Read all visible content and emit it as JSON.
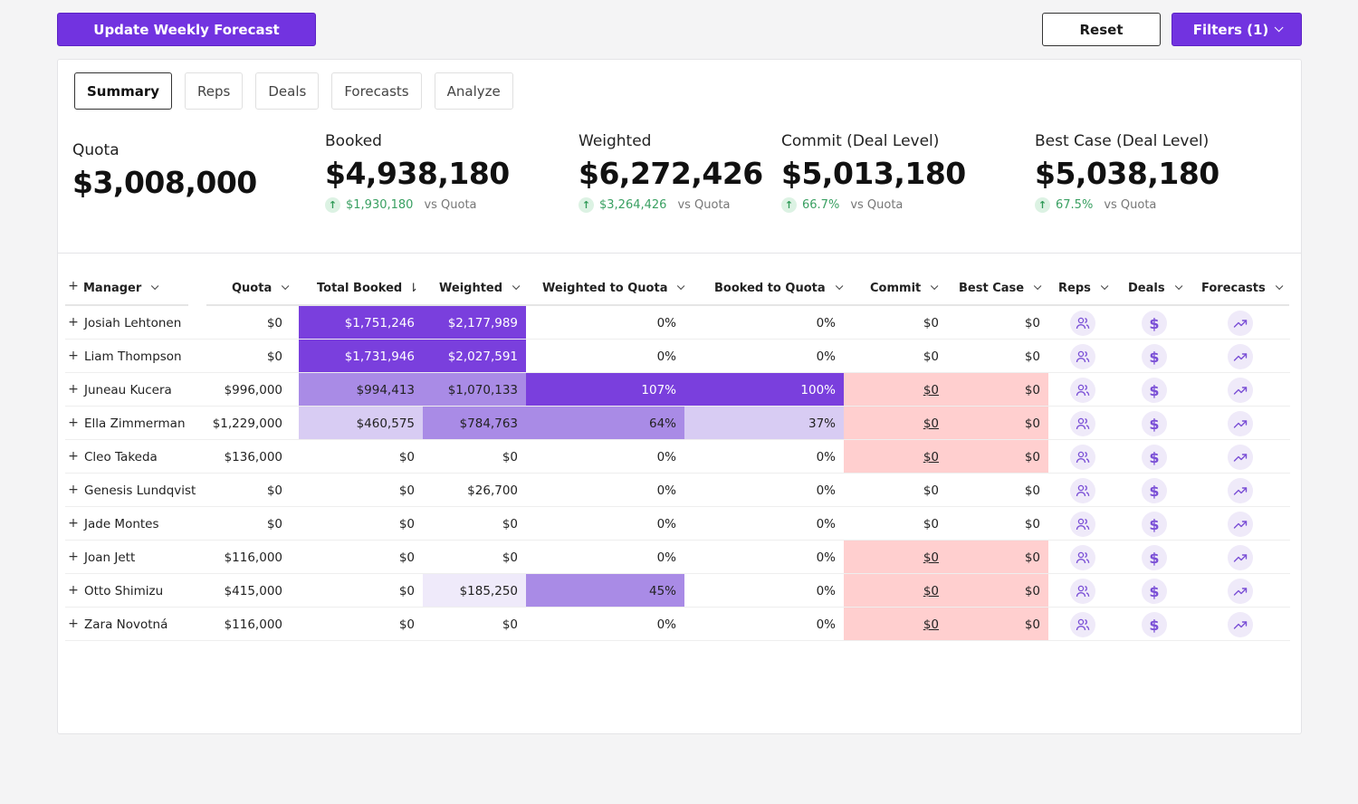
{
  "header": {
    "update_label": "Update Weekly Forecast",
    "reset_label": "Reset",
    "filters_label": "Filters (1)"
  },
  "tabs": [
    "Summary",
    "Reps",
    "Deals",
    "Forecasts",
    "Analyze"
  ],
  "metrics": {
    "quota": {
      "label": "Quota",
      "value": "$3,008,000"
    },
    "booked": {
      "label": "Booked",
      "value": "$4,938,180",
      "delta": "$1,930,180",
      "vs": "vs Quota"
    },
    "weighted": {
      "label": "Weighted",
      "value": "$6,272,426",
      "delta": "$3,264,426",
      "vs": "vs Quota"
    },
    "commit": {
      "label": "Commit (Deal Level)",
      "value": "$5,013,180",
      "delta": "66.7%",
      "vs": "vs Quota"
    },
    "best": {
      "label": "Best Case (Deal Level)",
      "value": "$5,038,180",
      "delta": "67.5%",
      "vs": "vs Quota"
    }
  },
  "table": {
    "columns": [
      "Manager",
      "Quota",
      "Total Booked",
      "Weighted",
      "Weighted to Quota",
      "Booked to Quota",
      "Commit",
      "Best Case",
      "Reps",
      "Deals",
      "Forecasts"
    ],
    "rows": [
      {
        "manager": "Josiah Lehtonen",
        "quota": "$0",
        "booked": "$1,751,246",
        "weighted": "$2,177,989",
        "wq": "0%",
        "bq": "0%",
        "commit": "$0",
        "best": "$0"
      },
      {
        "manager": "Liam Thompson",
        "quota": "$0",
        "booked": "$1,731,946",
        "weighted": "$2,027,591",
        "wq": "0%",
        "bq": "0%",
        "commit": "$0",
        "best": "$0"
      },
      {
        "manager": "Juneau Kucera",
        "quota": "$996,000",
        "booked": "$994,413",
        "weighted": "$1,070,133",
        "wq": "107%",
        "bq": "100%",
        "commit": "$0",
        "best": "$0"
      },
      {
        "manager": "Ella Zimmerman",
        "quota": "$1,229,000",
        "booked": "$460,575",
        "weighted": "$784,763",
        "wq": "64%",
        "bq": "37%",
        "commit": "$0",
        "best": "$0"
      },
      {
        "manager": "Cleo Takeda",
        "quota": "$136,000",
        "booked": "$0",
        "weighted": "$0",
        "wq": "0%",
        "bq": "0%",
        "commit": "$0",
        "best": "$0"
      },
      {
        "manager": "Genesis Lundqvist",
        "quota": "$0",
        "booked": "$0",
        "weighted": "$26,700",
        "wq": "0%",
        "bq": "0%",
        "commit": "$0",
        "best": "$0"
      },
      {
        "manager": "Jade Montes",
        "quota": "$0",
        "booked": "$0",
        "weighted": "$0",
        "wq": "0%",
        "bq": "0%",
        "commit": "$0",
        "best": "$0"
      },
      {
        "manager": "Joan Jett",
        "quota": "$116,000",
        "booked": "$0",
        "weighted": "$0",
        "wq": "0%",
        "bq": "0%",
        "commit": "$0",
        "best": "$0"
      },
      {
        "manager": "Otto Shimizu",
        "quota": "$415,000",
        "booked": "$0",
        "weighted": "$185,250",
        "wq": "45%",
        "bq": "0%",
        "commit": "$0",
        "best": "$0"
      },
      {
        "manager": "Zara Novotná",
        "quota": "$116,000",
        "booked": "$0",
        "weighted": "$0",
        "wq": "0%",
        "bq": "0%",
        "commit": "$0",
        "best": "$0"
      }
    ]
  },
  "colors": {
    "accent": "#7233e0",
    "heat_dark": "#7a3fdd",
    "heat_mid": "#a98be6",
    "heat_light": "#d8ccf3",
    "heat_faint": "#efeafa",
    "warn_pink": "#ffcfcf",
    "positive": "#3aa062"
  }
}
